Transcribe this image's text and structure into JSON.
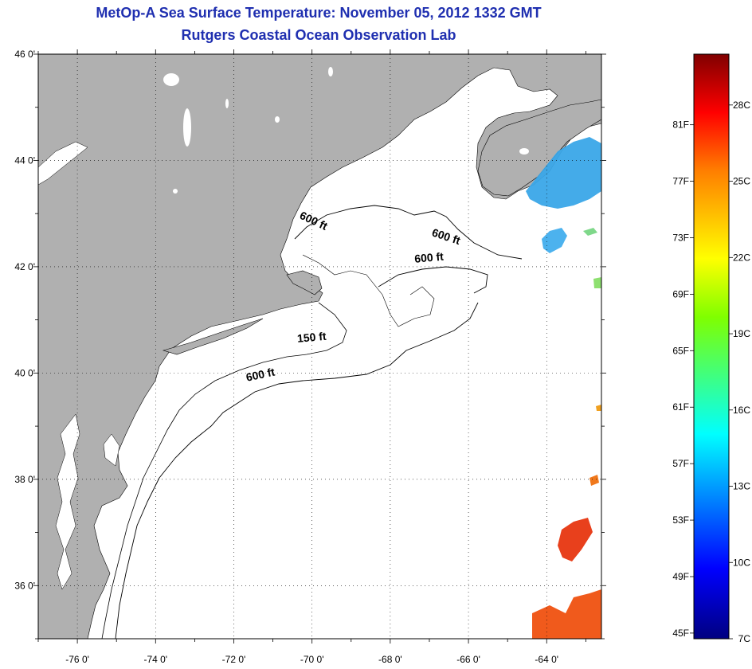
{
  "header": {
    "title": "MetOp-A Sea Surface Temperature:  November 05, 2012 1332 GMT",
    "subtitle": "Rutgers Coastal Ocean Observation Lab"
  },
  "map": {
    "lon_range": [
      -77,
      -62.6
    ],
    "lat_range": [
      35,
      46
    ],
    "lat_labels": [
      {
        "lat": 46,
        "text": "46 0'"
      },
      {
        "lat": 44,
        "text": "44 0'"
      },
      {
        "lat": 42,
        "text": "42 0'"
      },
      {
        "lat": 40,
        "text": "40 0'"
      },
      {
        "lat": 38,
        "text": "38 0'"
      },
      {
        "lat": 36,
        "text": "36 0'"
      }
    ],
    "lon_labels": [
      {
        "lon": -76,
        "text": "-76 0'"
      },
      {
        "lon": -74,
        "text": "-74 0'"
      },
      {
        "lon": -72,
        "text": "-72 0'"
      },
      {
        "lon": -70,
        "text": "-70 0'"
      },
      {
        "lon": -68,
        "text": "-68 0'"
      },
      {
        "lon": -66,
        "text": "-66 0'"
      },
      {
        "lon": -64,
        "text": "-64 0'"
      }
    ],
    "contour_labels": [
      {
        "text": "600 ft",
        "lon": -70.0,
        "lat": 42.8
      },
      {
        "text": "600 ft",
        "lon": -66.6,
        "lat": 42.5
      },
      {
        "text": "600 ft",
        "lon": -67.0,
        "lat": 42.1
      },
      {
        "text": "150 ft",
        "lon": -70.0,
        "lat": 40.6
      },
      {
        "text": "600 ft",
        "lon": -71.3,
        "lat": 39.9
      }
    ],
    "land_color": "#b0b0b0",
    "ocean_color": "#ffffff"
  },
  "colorbar": {
    "fahrenheit": [
      "81F",
      "77F",
      "73F",
      "69F",
      "65F",
      "61F",
      "57F",
      "53F",
      "49F",
      "45F"
    ],
    "celsius": [
      "28C",
      "25C",
      "22C",
      "19C",
      "16C",
      "13C",
      "10C",
      "7C"
    ],
    "min_c": 7,
    "max_c": 30
  }
}
